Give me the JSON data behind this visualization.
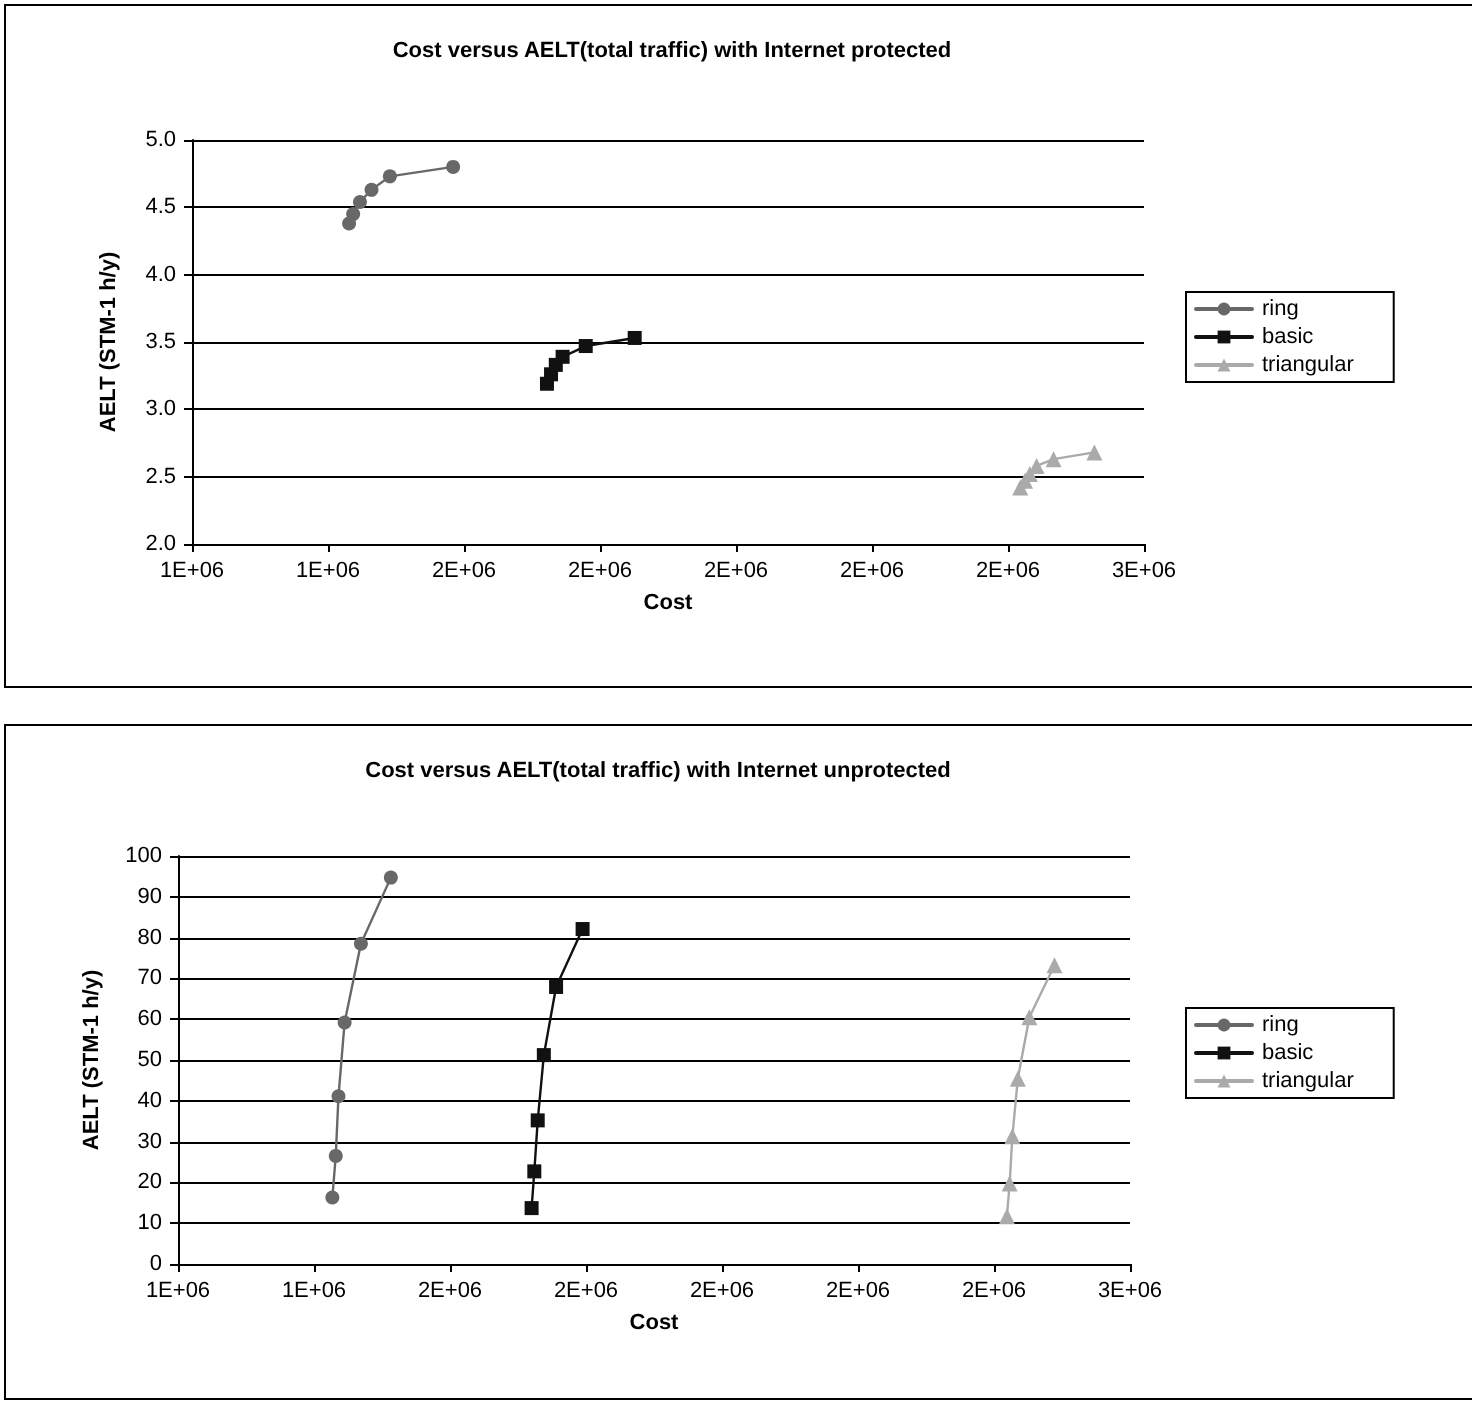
{
  "chart_data": [
    {
      "type": "line",
      "title": "Cost versus AELT(total traffic) with Internet protected",
      "xlabel": "Cost",
      "ylabel": "AELT (STM-1 h/y)",
      "xlim": [
        1200000,
        2600000
      ],
      "xticks": [
        {
          "value": 1200000,
          "label": "1E+06"
        },
        {
          "value": 1400000,
          "label": "1E+06"
        },
        {
          "value": 1600000,
          "label": "2E+06"
        },
        {
          "value": 1800000,
          "label": "2E+06"
        },
        {
          "value": 2000000,
          "label": "2E+06"
        },
        {
          "value": 2200000,
          "label": "2E+06"
        },
        {
          "value": 2400000,
          "label": "2E+06"
        },
        {
          "value": 2600000,
          "label": "3E+06"
        }
      ],
      "ylim": [
        2,
        5
      ],
      "yticks": [
        {
          "value": 2,
          "label": "2.0"
        },
        2.5,
        {
          "value": 3,
          "label": "3.0"
        },
        3.5,
        {
          "value": 4,
          "label": "4.0"
        },
        4.5,
        {
          "value": 5,
          "label": "5.0"
        }
      ],
      "grid": "y",
      "legend": "right",
      "series": [
        {
          "name": "ring",
          "color": "#686868",
          "marker": "circle",
          "x": [
            1431000,
            1437000,
            1447000,
            1464000,
            1491000,
            1584000
          ],
          "values": [
            4.38,
            4.45,
            4.54,
            4.63,
            4.73,
            4.8
          ]
        },
        {
          "name": "basic",
          "color": "#111111",
          "marker": "square",
          "x": [
            1722000,
            1728000,
            1735000,
            1745000,
            1779000,
            1851000
          ],
          "values": [
            3.19,
            3.26,
            3.33,
            3.39,
            3.47,
            3.53
          ]
        },
        {
          "name": "triangular",
          "color": "#aaaaaa",
          "marker": "triangle",
          "x": [
            2418000,
            2425000,
            2432000,
            2442000,
            2467000,
            2527000
          ],
          "values": [
            2.42,
            2.47,
            2.52,
            2.58,
            2.63,
            2.68
          ]
        }
      ]
    },
    {
      "type": "line",
      "title": "Cost versus AELT(total traffic) with Internet unprotected",
      "xlabel": "Cost",
      "ylabel": "AELT (STM-1 h/y)",
      "xlim": [
        1200000,
        2600000
      ],
      "xticks": [
        {
          "value": 1200000,
          "label": "1E+06"
        },
        {
          "value": 1400000,
          "label": "1E+06"
        },
        {
          "value": 1600000,
          "label": "2E+06"
        },
        {
          "value": 1800000,
          "label": "2E+06"
        },
        {
          "value": 2000000,
          "label": "2E+06"
        },
        {
          "value": 2200000,
          "label": "2E+06"
        },
        {
          "value": 2400000,
          "label": "2E+06"
        },
        {
          "value": 2600000,
          "label": "3E+06"
        }
      ],
      "ylim": [
        0,
        100
      ],
      "yticks": [
        0,
        10,
        20,
        30,
        40,
        50,
        60,
        70,
        80,
        90,
        100
      ],
      "grid": "y",
      "legend": "right",
      "series": [
        {
          "name": "ring",
          "color": "#686868",
          "marker": "circle",
          "x": [
            1427000,
            1432000,
            1436000,
            1445000,
            1469000,
            1513000
          ],
          "values": [
            16.3,
            26.5,
            41.1,
            59.2,
            78.5,
            94.7
          ]
        },
        {
          "name": "basic",
          "color": "#111111",
          "marker": "square",
          "x": [
            1720000,
            1724000,
            1729000,
            1738000,
            1756000,
            1795000
          ],
          "values": [
            13.7,
            22.7,
            35.2,
            51.2,
            67.9,
            82.1
          ]
        },
        {
          "name": "triangular",
          "color": "#aaaaaa",
          "marker": "triangle",
          "x": [
            2419000,
            2423000,
            2427000,
            2435000,
            2452000,
            2489000
          ],
          "values": [
            11.7,
            19.7,
            31.3,
            45.4,
            60.5,
            73.2
          ]
        }
      ]
    }
  ]
}
